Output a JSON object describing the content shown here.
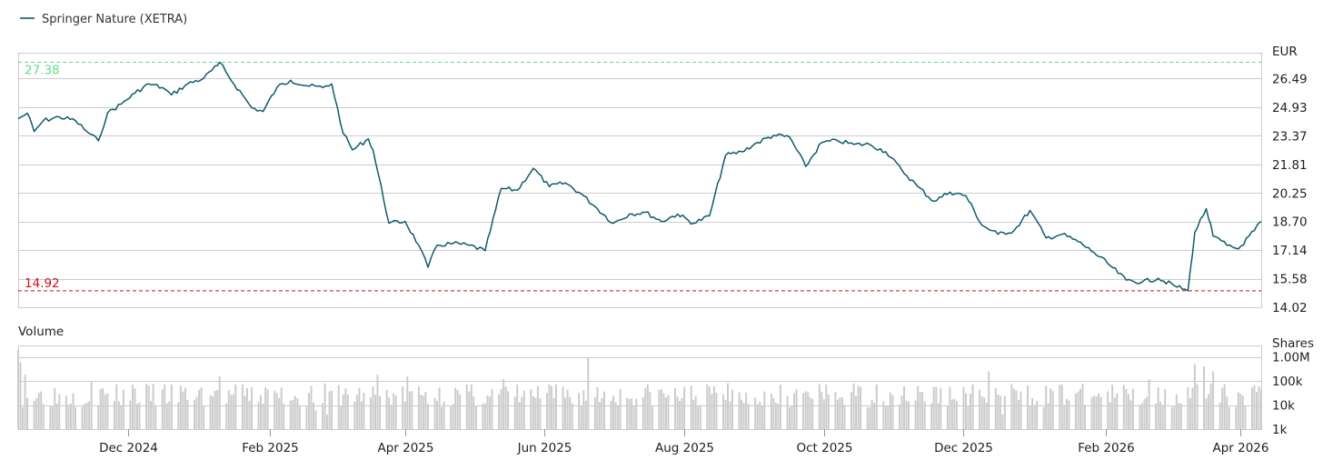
{
  "legend": {
    "label": "Springer Nature (XETRA)",
    "color": "#0e5a6e"
  },
  "price_panel": {
    "unit_label": "EUR",
    "y_ticks": [
      "26.49",
      "24.93",
      "23.37",
      "21.81",
      "20.25",
      "18.70",
      "17.14",
      "15.58",
      "14.02"
    ],
    "high_label": "27.38",
    "low_label": "14.92",
    "high_color": "#66dd88",
    "low_color": "#cc1122"
  },
  "volume_panel": {
    "title": "Volume",
    "unit_label": "Shares",
    "y_ticks": [
      "1.00M",
      "100k",
      "10k",
      "1k"
    ]
  },
  "x_ticks": [
    "Dec 2024",
    "Feb 2025",
    "Apr 2025",
    "Jun 2025",
    "Aug 2025",
    "Oct 2025",
    "Dec 2025",
    "Feb 2026",
    "Apr 2026"
  ],
  "chart_data": [
    {
      "type": "line",
      "series": [
        {
          "name": "Springer Nature (XETRA)",
          "color": "#0e5a6e",
          "points": [
            [
              "2024-10-14",
              24.3
            ],
            [
              "2024-10-18",
              24.6
            ],
            [
              "2024-10-21",
              23.6
            ],
            [
              "2024-10-25",
              24.2
            ],
            [
              "2024-11-01",
              24.4
            ],
            [
              "2024-11-08",
              24.2
            ],
            [
              "2024-11-13",
              23.6
            ],
            [
              "2024-11-18",
              23.1
            ],
            [
              "2024-11-22",
              24.6
            ],
            [
              "2024-11-28",
              25.1
            ],
            [
              "2024-12-04",
              25.7
            ],
            [
              "2024-12-10",
              26.2
            ],
            [
              "2024-12-16",
              26.0
            ],
            [
              "2024-12-20",
              25.6
            ],
            [
              "2024-12-27",
              26.2
            ],
            [
              "2025-01-03",
              26.5
            ],
            [
              "2025-01-09",
              27.2
            ],
            [
              "2025-01-10",
              27.38
            ],
            [
              "2025-01-14",
              26.6
            ],
            [
              "2025-01-20",
              25.6
            ],
            [
              "2025-01-24",
              24.9
            ],
            [
              "2025-01-29",
              24.7
            ],
            [
              "2025-02-04",
              26.0
            ],
            [
              "2025-02-10",
              26.4
            ],
            [
              "2025-02-17",
              26.1
            ],
            [
              "2025-02-24",
              26.0
            ],
            [
              "2025-02-28",
              26.2
            ],
            [
              "2025-03-05",
              23.5
            ],
            [
              "2025-03-09",
              22.6
            ],
            [
              "2025-03-16",
              23.2
            ],
            [
              "2025-03-18",
              22.6
            ],
            [
              "2025-03-25",
              18.6
            ],
            [
              "2025-04-01",
              18.7
            ],
            [
              "2025-04-07",
              17.4
            ],
            [
              "2025-04-11",
              16.2
            ],
            [
              "2025-04-15",
              17.4
            ],
            [
              "2025-04-22",
              17.5
            ],
            [
              "2025-04-29",
              17.4
            ],
            [
              "2025-05-06",
              17.1
            ],
            [
              "2025-05-13",
              20.5
            ],
            [
              "2025-05-20",
              20.4
            ],
            [
              "2025-05-27",
              21.6
            ],
            [
              "2025-06-03",
              20.6
            ],
            [
              "2025-06-10",
              20.8
            ],
            [
              "2025-06-17",
              20.2
            ],
            [
              "2025-06-24",
              19.4
            ],
            [
              "2025-07-01",
              18.6
            ],
            [
              "2025-07-08",
              19.1
            ],
            [
              "2025-07-15",
              19.2
            ],
            [
              "2025-07-22",
              18.7
            ],
            [
              "2025-07-29",
              19.1
            ],
            [
              "2025-08-05",
              18.6
            ],
            [
              "2025-08-12",
              19.0
            ],
            [
              "2025-08-19",
              22.3
            ],
            [
              "2025-08-26",
              22.5
            ],
            [
              "2025-09-02",
              23.0
            ],
            [
              "2025-09-09",
              23.4
            ],
            [
              "2025-09-16",
              23.3
            ],
            [
              "2025-09-23",
              21.7
            ],
            [
              "2025-09-30",
              23.0
            ],
            [
              "2025-10-07",
              23.1
            ],
            [
              "2025-10-14",
              22.9
            ],
            [
              "2025-10-21",
              22.9
            ],
            [
              "2025-10-28",
              22.5
            ],
            [
              "2025-11-04",
              21.5
            ],
            [
              "2025-11-11",
              20.6
            ],
            [
              "2025-11-18",
              19.8
            ],
            [
              "2025-11-25",
              20.3
            ],
            [
              "2025-12-02",
              20.1
            ],
            [
              "2025-12-09",
              18.5
            ],
            [
              "2025-12-16",
              18.0
            ],
            [
              "2025-12-23",
              18.2
            ],
            [
              "2025-12-30",
              19.3
            ],
            [
              "2026-01-06",
              17.8
            ],
            [
              "2026-01-13",
              18.0
            ],
            [
              "2026-01-20",
              17.6
            ],
            [
              "2026-01-27",
              17.0
            ],
            [
              "2026-02-03",
              16.3
            ],
            [
              "2026-02-10",
              15.5
            ],
            [
              "2026-02-17",
              15.4
            ],
            [
              "2026-02-24",
              15.6
            ],
            [
              "2026-03-03",
              15.2
            ],
            [
              "2026-03-09",
              14.92
            ],
            [
              "2026-03-12",
              18.1
            ],
            [
              "2026-03-17",
              19.4
            ],
            [
              "2026-03-20",
              17.9
            ],
            [
              "2026-03-26",
              17.4
            ],
            [
              "2026-03-31",
              17.2
            ],
            [
              "2026-04-07",
              18.2
            ],
            [
              "2026-04-10",
              18.7
            ]
          ]
        }
      ],
      "unit": "EUR",
      "x_range": [
        "2024-10-14",
        "2026-04-10"
      ],
      "ylim": [
        14.02,
        27.9
      ],
      "y_ticks": [
        14.02,
        15.58,
        17.14,
        18.7,
        20.25,
        21.81,
        23.37,
        24.93,
        26.49
      ],
      "reference_lines": [
        {
          "label": "27.38",
          "value": 27.38,
          "style": "dashed",
          "color": "#66dd88"
        },
        {
          "label": "14.92",
          "value": 14.92,
          "style": "dashed",
          "color": "#cc1122"
        }
      ],
      "x_ticks": [
        "Dec 2024",
        "Feb 2025",
        "Apr 2025",
        "Jun 2025",
        "Aug 2025",
        "Oct 2025",
        "Dec 2025",
        "Feb 2026",
        "Apr 2026"
      ],
      "grid": true,
      "legend": "top-left"
    },
    {
      "type": "bar",
      "title": "Volume",
      "unit": "Shares",
      "scale": "log",
      "ylim": [
        1000,
        3000000
      ],
      "y_ticks": [
        "1.00M",
        "100k",
        "10k",
        "1k"
      ],
      "bar_color": "#cccccc",
      "x_range": [
        "2024-10-14",
        "2026-04-10"
      ],
      "values": [
        {
          "date": "2024-10-14",
          "shares": 2000000
        },
        {
          "date": "2024-10-15",
          "shares": 600000
        },
        {
          "date": "2024-10-17",
          "shares": 180000
        },
        {
          "date": "2024-11-15",
          "shares": 90000
        },
        {
          "date": "2024-12-03",
          "shares": 70000
        },
        {
          "date": "2025-01-10",
          "shares": 160000
        },
        {
          "date": "2025-02-03",
          "shares": 40000
        },
        {
          "date": "2025-02-21",
          "shares": 6000
        },
        {
          "date": "2025-02-26",
          "shares": 4000
        },
        {
          "date": "2025-03-20",
          "shares": 180000
        },
        {
          "date": "2025-04-02",
          "shares": 150000
        },
        {
          "date": "2025-05-14",
          "shares": 120000
        },
        {
          "date": "2025-06-20",
          "shares": 900000
        },
        {
          "date": "2025-08-20",
          "shares": 80000
        },
        {
          "date": "2025-09-12",
          "shares": 70000
        },
        {
          "date": "2025-11-05",
          "shares": 60000
        },
        {
          "date": "2025-12-12",
          "shares": 250000
        },
        {
          "date": "2025-12-18",
          "shares": 4000
        },
        {
          "date": "2026-01-12",
          "shares": 70000
        },
        {
          "date": "2026-02-20",
          "shares": 120000
        },
        {
          "date": "2026-03-12",
          "shares": 500000
        },
        {
          "date": "2026-03-16",
          "shares": 400000
        },
        {
          "date": "2026-03-20",
          "shares": 250000
        },
        {
          "date": "2026-04-09",
          "shares": 60000
        }
      ],
      "typical_range": [
        8000,
        80000
      ]
    }
  ]
}
